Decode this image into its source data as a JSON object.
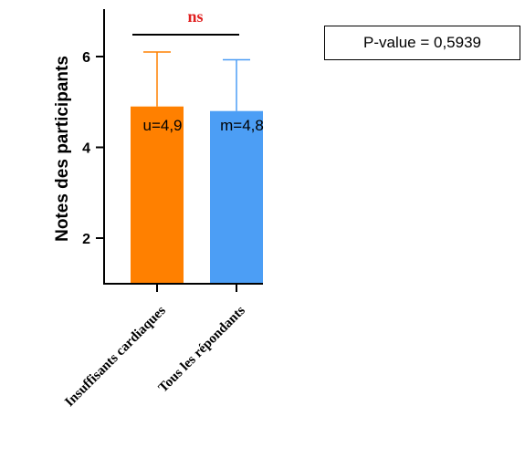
{
  "chart_data": {
    "type": "bar",
    "ylabel": "Notes des participants",
    "ylim": [
      1,
      7
    ],
    "yticks": [
      2,
      4,
      6
    ],
    "categories": [
      "Insuffisants cardiaques",
      "Tous les répondants"
    ],
    "values": [
      4.9,
      4.8
    ],
    "error_upper": [
      6.1,
      5.93
    ],
    "bar_labels": [
      "u=4,9",
      "m=4,8"
    ],
    "colors": [
      "#ff8000",
      "#4c9ef5"
    ],
    "significance": {
      "label": "ns",
      "color": "#e02020",
      "pair": [
        0,
        1
      ]
    },
    "annotation": "P-value = 0,5939"
  }
}
